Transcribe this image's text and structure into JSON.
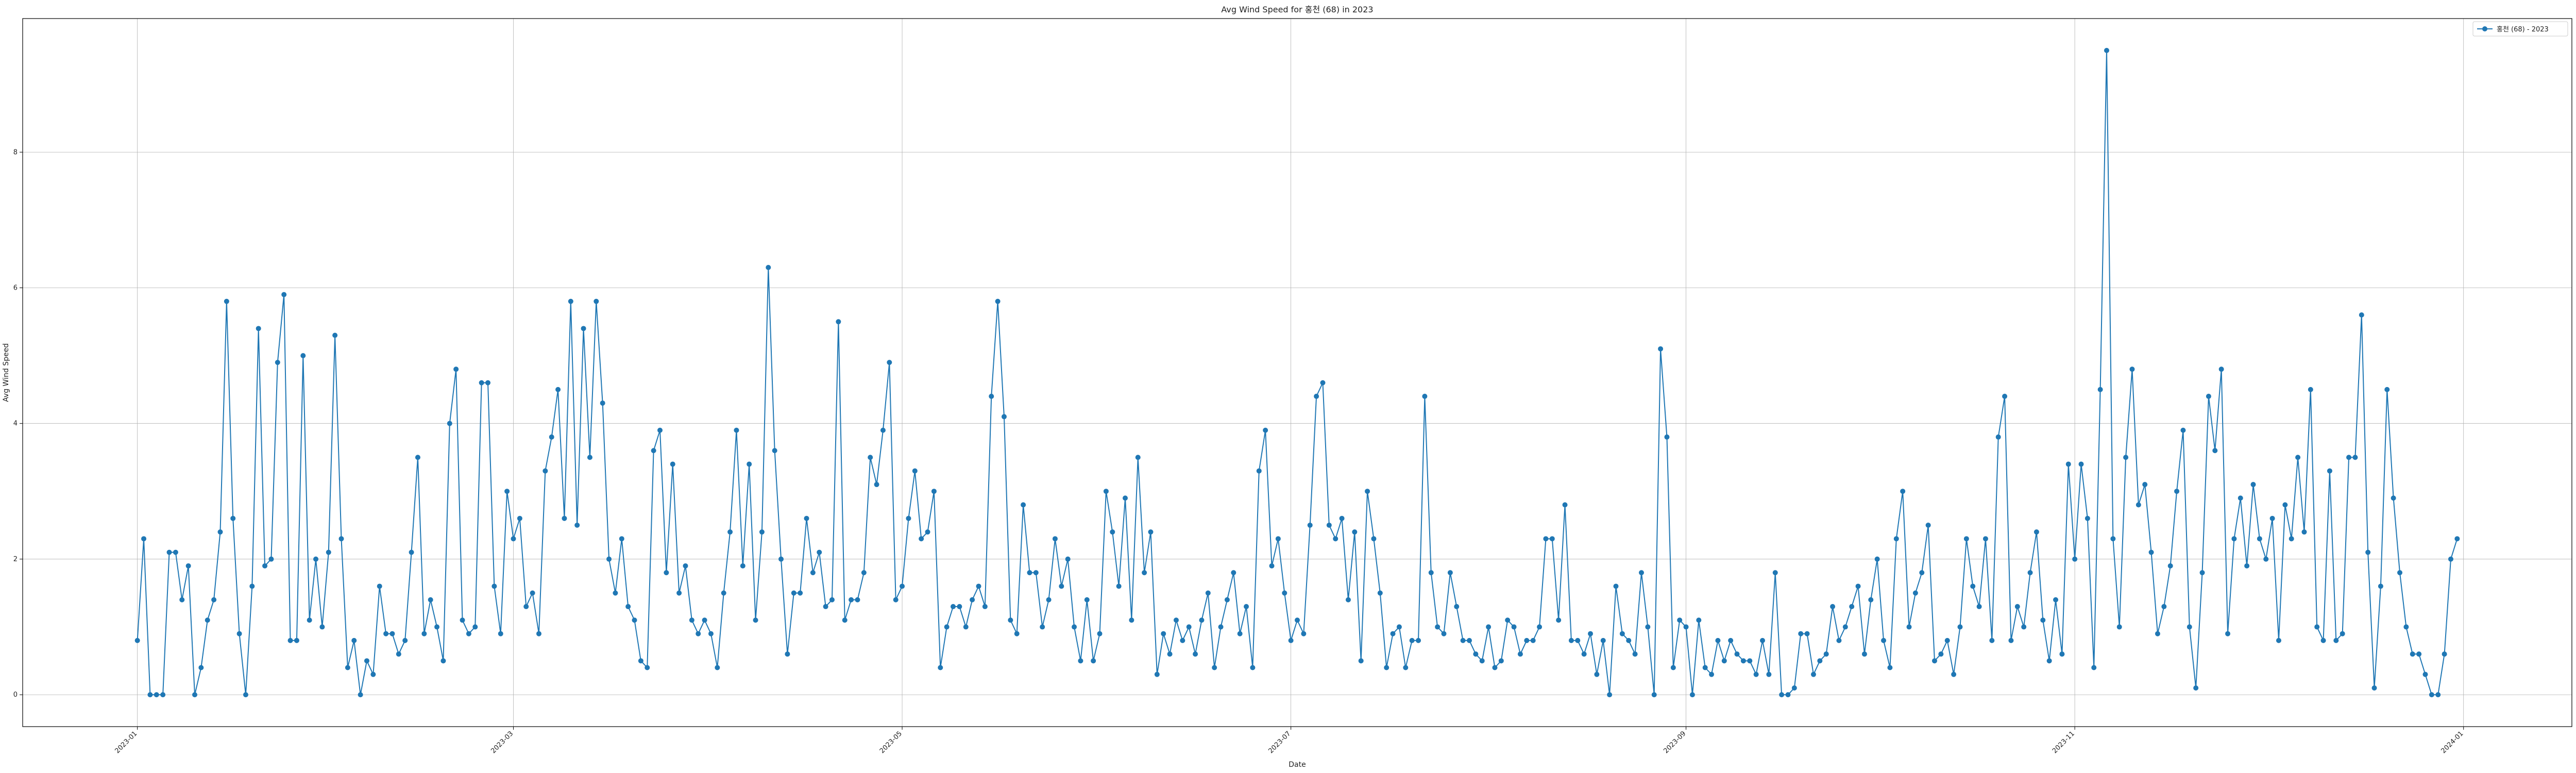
{
  "chart_data": {
    "type": "line",
    "title": "Avg Wind Speed for 홍천 (68) in 2023",
    "xlabel": "Date",
    "ylabel": "Avg Wind Speed",
    "legend_position": "top-right",
    "grid": true,
    "x_ticks": [
      "2023-01",
      "2023-03",
      "2023-05",
      "2023-07",
      "2023-09",
      "2023-11",
      "2024-01"
    ],
    "y_ticks": [
      0,
      2,
      4,
      6,
      8
    ],
    "ylim": [
      -0.47,
      9.97
    ],
    "xlim": [
      "2022-12-14",
      "2024-01-18"
    ],
    "colors": {
      "series": "#1f77b4",
      "grid": "#b0b0b0",
      "axis": "#000000"
    },
    "series": [
      {
        "name": "홍천 (68) - 2023",
        "start_date": "2023-01-01",
        "values": [
          0.8,
          2.3,
          0.0,
          0.0,
          0.0,
          2.1,
          2.1,
          1.4,
          1.9,
          0.0,
          0.4,
          1.1,
          1.4,
          2.4,
          5.8,
          2.6,
          0.9,
          0.0,
          1.6,
          5.4,
          1.9,
          2.0,
          4.9,
          5.9,
          0.8,
          0.8,
          5.0,
          1.1,
          2.0,
          1.0,
          2.1,
          5.3,
          2.3,
          0.4,
          0.8,
          0.0,
          0.5,
          0.3,
          1.6,
          0.9,
          0.9,
          0.6,
          0.8,
          2.1,
          3.5,
          0.9,
          1.4,
          1.0,
          0.5,
          4.0,
          4.8,
          1.1,
          0.9,
          1.0,
          4.6,
          4.6,
          1.6,
          0.9,
          3.0,
          2.3,
          2.6,
          1.3,
          1.5,
          0.9,
          3.3,
          3.8,
          4.5,
          2.6,
          5.8,
          2.5,
          5.4,
          3.5,
          5.8,
          4.3,
          2.0,
          1.5,
          2.3,
          1.3,
          1.1,
          0.5,
          0.4,
          3.6,
          3.9,
          1.8,
          3.4,
          1.5,
          1.9,
          1.1,
          0.9,
          1.1,
          0.9,
          0.4,
          1.5,
          2.4,
          3.9,
          1.9,
          3.4,
          1.1,
          2.4,
          6.3,
          3.6,
          2.0,
          0.6,
          1.5,
          1.5,
          2.6,
          1.8,
          2.1,
          1.3,
          1.4,
          5.5,
          1.1,
          1.4,
          1.4,
          1.8,
          3.5,
          3.1,
          3.9,
          4.9,
          1.4,
          1.6,
          2.6,
          3.3,
          2.3,
          2.4,
          3.0,
          0.4,
          1.0,
          1.3,
          1.3,
          1.0,
          1.4,
          1.6,
          1.3,
          4.4,
          5.8,
          4.1,
          1.1,
          0.9,
          2.8,
          1.8,
          1.8,
          1.0,
          1.4,
          2.3,
          1.6,
          2.0,
          1.0,
          0.5,
          1.4,
          0.5,
          0.9,
          3.0,
          2.4,
          1.6,
          2.9,
          1.1,
          3.5,
          1.8,
          2.4,
          0.3,
          0.9,
          0.6,
          1.1,
          0.8,
          1.0,
          0.6,
          1.1,
          1.5,
          0.4,
          1.0,
          1.4,
          1.8,
          0.9,
          1.3,
          0.4,
          3.3,
          3.9,
          1.9,
          2.3,
          1.5,
          0.8,
          1.1,
          0.9,
          2.5,
          4.4,
          4.6,
          2.5,
          2.3,
          2.6,
          1.4,
          2.4,
          0.5,
          3.0,
          2.3,
          1.5,
          0.4,
          0.9,
          1.0,
          0.4,
          0.8,
          0.8,
          4.4,
          1.8,
          1.0,
          0.9,
          1.8,
          1.3,
          0.8,
          0.8,
          0.6,
          0.5,
          1.0,
          0.4,
          0.5,
          1.1,
          1.0,
          0.6,
          0.8,
          0.8,
          1.0,
          2.3,
          2.3,
          1.1,
          2.8,
          0.8,
          0.8,
          0.6,
          0.9,
          0.3,
          0.8,
          0.0,
          1.6,
          0.9,
          0.8,
          0.6,
          1.8,
          1.0,
          0.0,
          5.1,
          3.8,
          0.4,
          1.1,
          1.0,
          0.0,
          1.1,
          0.4,
          0.3,
          0.8,
          0.5,
          0.8,
          0.6,
          0.5,
          0.5,
          0.3,
          0.8,
          0.3,
          1.8,
          0.0,
          0.0,
          0.1,
          0.9,
          0.9,
          0.3,
          0.5,
          0.6,
          1.3,
          0.8,
          1.0,
          1.3,
          1.6,
          0.6,
          1.4,
          2.0,
          0.8,
          0.4,
          2.3,
          3.0,
          1.0,
          1.5,
          1.8,
          2.5,
          0.5,
          0.6,
          0.8,
          0.3,
          1.0,
          2.3,
          1.6,
          1.3,
          2.3,
          0.8,
          3.8,
          4.4,
          0.8,
          1.3,
          1.0,
          1.8,
          2.4,
          1.1,
          0.5,
          1.4,
          0.6,
          3.4,
          2.0,
          3.4,
          2.6,
          0.4,
          4.5,
          9.5,
          2.3,
          1.0,
          3.5,
          4.8,
          2.8,
          3.1,
          2.1,
          0.9,
          1.3,
          1.9,
          3.0,
          3.9,
          1.0,
          0.1,
          1.8,
          4.4,
          3.6,
          4.8,
          0.9,
          2.3,
          2.9,
          1.9,
          3.1,
          2.3,
          2.0,
          2.6,
          0.8,
          2.8,
          2.3,
          3.5,
          2.4,
          4.5,
          1.0,
          0.8,
          3.3,
          0.8,
          0.9,
          3.5,
          3.5,
          5.6,
          2.1,
          0.1,
          1.6,
          4.5,
          2.9,
          1.8,
          1.0,
          0.6,
          0.6,
          0.3,
          0.0,
          0.0,
          0.6,
          2.0,
          2.3
        ]
      }
    ]
  }
}
